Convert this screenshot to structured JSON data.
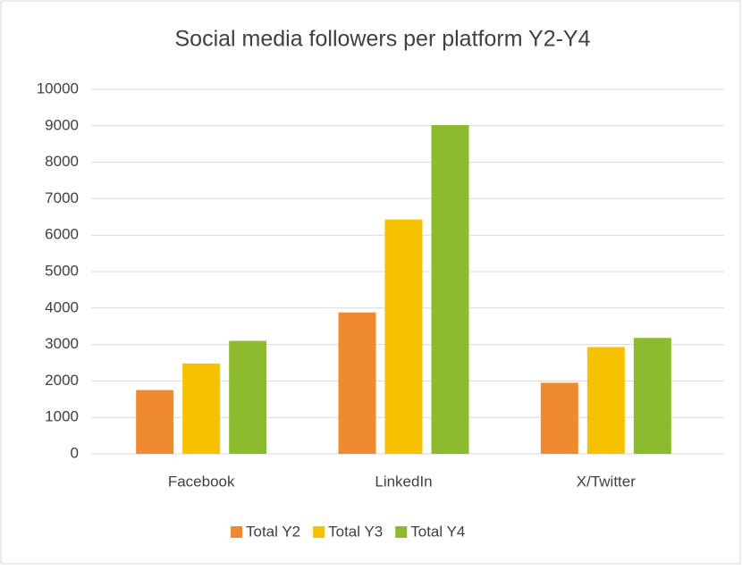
{
  "chart_data": {
    "type": "bar",
    "title": "Social media followers per platform  Y2-Y4",
    "categories": [
      "Facebook",
      "LinkedIn",
      "X/Twitter"
    ],
    "series": [
      {
        "name": "Total Y2",
        "color": "#f08a30",
        "values": [
          1750,
          3880,
          1950
        ]
      },
      {
        "name": "Total Y3",
        "color": "#f6c200",
        "values": [
          2480,
          6430,
          2930
        ]
      },
      {
        "name": "Total Y4",
        "color": "#8cbb2e",
        "values": [
          3100,
          9020,
          3180
        ]
      }
    ],
    "ylim": [
      0,
      10000
    ],
    "yticks": [
      0,
      1000,
      2000,
      3000,
      4000,
      5000,
      6000,
      7000,
      8000,
      9000,
      10000
    ],
    "grid": true,
    "legend": "bottom"
  }
}
